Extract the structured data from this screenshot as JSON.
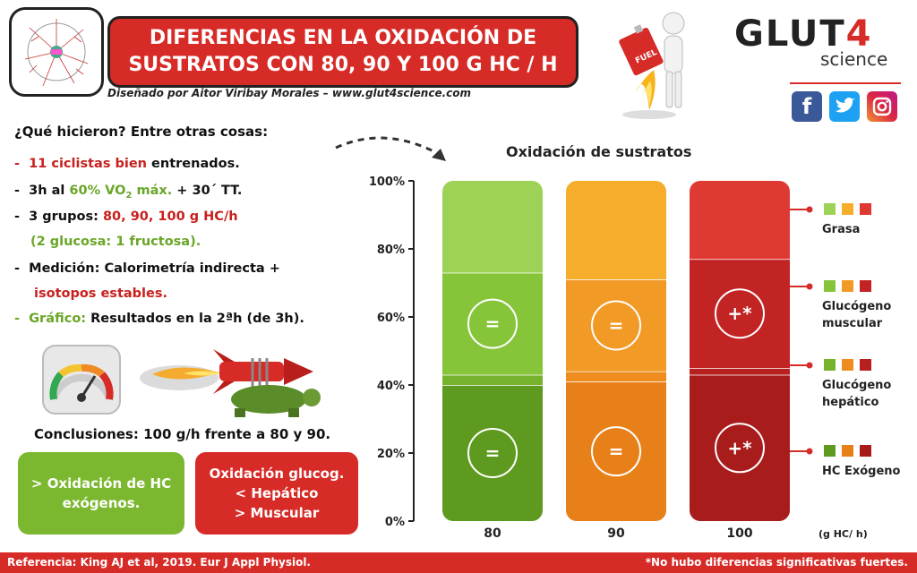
{
  "header": {
    "title_line1": "DIFERENCIAS EN LA OXIDACIÓN DE",
    "title_line2": "SUSTRATOS CON 80, 90 Y 100 G HC / H",
    "credit": "Diseñado por Aitor Viribay Morales – www.glut4science.com",
    "brand_main": "GLUT",
    "brand_num": "4",
    "brand_sub": "science",
    "social_icons": [
      "facebook-icon",
      "twitter-icon",
      "instagram-icon"
    ],
    "fuel_label": "FUEL"
  },
  "method": {
    "question": "¿Qué hicieron? Entre otras cosas:",
    "items": [
      {
        "dash": "-",
        "highlight": "11 ciclistas bien",
        "rest": " entrenados."
      },
      {
        "dash": "-",
        "prefix": "3h al ",
        "highlight": "60% VO",
        "sub": "2",
        "highlight2": " máx.",
        "rest": " + 30´ TT."
      },
      {
        "dash": "-",
        "prefix": "3 grupos: ",
        "highlight": "80, 90, 100 g HC/h"
      },
      {
        "highlight": "(2 glucosa: 1 fructosa)."
      },
      {
        "dash": "-",
        "prefix": "Medición: Calorimetría indirecta +"
      },
      {
        "highlight": "isotopos estables."
      },
      {
        "dash": "-",
        "highlight": "Gráfico:",
        "rest": " Resultados en la 2ªh (de 3h)."
      }
    ]
  },
  "conclusions": {
    "title": "Conclusiones: 100 g/h frente a 80 y 90.",
    "green_box": [
      "> Oxidación de HC",
      "exógenos."
    ],
    "red_box": [
      "Oxidación glucog.",
      "< Hepático",
      "> Muscular"
    ]
  },
  "footer": {
    "reference": "Referencia: King AJ et al, 2019. Eur J Appl Physiol.",
    "note": "*No hubo diferencias significativas fuertes."
  },
  "colors": {
    "red": "#d62b27",
    "green": "#7cb82f",
    "orange": "#f39a1c",
    "dark": "#222222"
  },
  "chart_data": {
    "type": "bar",
    "stacked": true,
    "title": "Oxidación de sustratos",
    "xlabel": "(g HC/ h)",
    "categories": [
      "80",
      "90",
      "100"
    ],
    "ylim": [
      0,
      100
    ],
    "yticks": [
      "0%",
      "20%",
      "40%",
      "60%",
      "80%",
      "100%"
    ],
    "series": [
      {
        "name": "HC Exógeno",
        "values": [
          40,
          41,
          43
        ],
        "colors": [
          "#5e9a1f",
          "#e8801a",
          "#a81c1c"
        ],
        "markers": [
          "=",
          "=",
          "+*"
        ]
      },
      {
        "name": "Glucógeno hepático",
        "values": [
          3,
          3,
          2
        ],
        "colors": [
          "#76b22c",
          "#ef8c20",
          "#b82020"
        ],
        "markers": [
          "",
          "",
          ""
        ]
      },
      {
        "name": "Glucógeno muscular",
        "values": [
          30,
          27,
          32
        ],
        "colors": [
          "#86c43a",
          "#f29a26",
          "#c22424"
        ],
        "markers": [
          "=",
          "=",
          "+*"
        ]
      },
      {
        "name": "Grasa",
        "values": [
          27,
          29,
          23
        ],
        "colors": [
          "#9ed256",
          "#f7ad2c",
          "#de3a33"
        ],
        "markers": [
          "",
          "",
          ""
        ]
      }
    ],
    "legend": [
      {
        "label_lines": [
          "Grasa"
        ]
      },
      {
        "label_lines": [
          "Glucógeno",
          "muscular"
        ]
      },
      {
        "label_lines": [
          "Glucógeno",
          "hepático"
        ]
      },
      {
        "label_lines": [
          "HC Exógeno"
        ]
      }
    ],
    "legend_square_colors": [
      [
        "#9ed256",
        "#f7ad2c",
        "#de3a33"
      ],
      [
        "#86c43a",
        "#f29a26",
        "#c22424"
      ],
      [
        "#76b22c",
        "#ef8c20",
        "#b82020"
      ],
      [
        "#5e9a1f",
        "#e8801a",
        "#a81c1c"
      ]
    ],
    "legend_position": "right",
    "grid": false
  }
}
